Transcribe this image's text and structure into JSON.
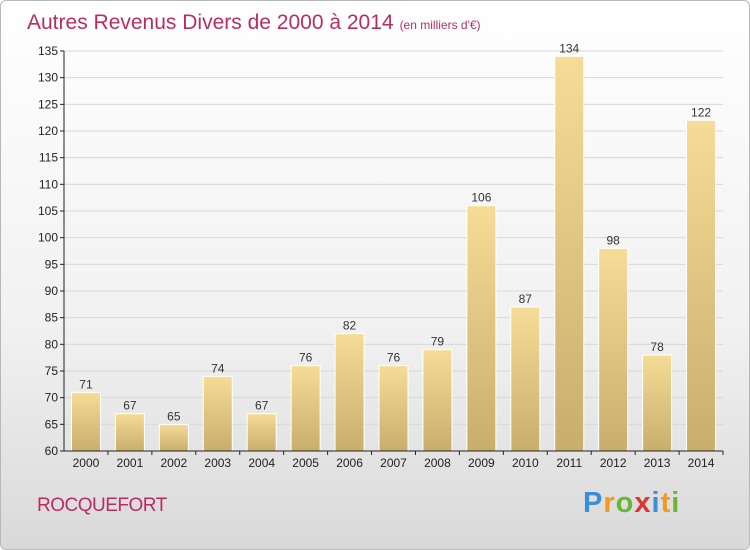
{
  "title": "Autres Revenus Divers de 2000 à 2014",
  "unit_note": "(en milliers d'€)",
  "commune": "ROCQUEFORT",
  "logo": {
    "letters": [
      "P",
      "r",
      "o",
      "x",
      "i",
      "t",
      "i"
    ],
    "colors": [
      "#3a8fd6",
      "#f29a1d",
      "#6ab534",
      "#e0342e",
      "#3a8fd6",
      "#f29a1d",
      "#6ab534"
    ]
  },
  "colors": {
    "bar_light": "#f6dc96",
    "bar_dark": "#c9ad6d",
    "title": "#bb2c63",
    "axis": "#222222",
    "grid": "#d8d8d8"
  },
  "chart_data": {
    "type": "bar",
    "categories": [
      "2000",
      "2001",
      "2002",
      "2003",
      "2004",
      "2005",
      "2006",
      "2007",
      "2008",
      "2009",
      "2010",
      "2011",
      "2012",
      "2013",
      "2014"
    ],
    "values": [
      71,
      67,
      65,
      74,
      67,
      76,
      82,
      76,
      79,
      106,
      87,
      134,
      98,
      78,
      122
    ],
    "ylim": [
      60,
      135
    ],
    "yticks": [
      60,
      65,
      70,
      75,
      80,
      85,
      90,
      95,
      100,
      105,
      110,
      115,
      120,
      125,
      130,
      135
    ],
    "grid": true,
    "data_labels": true
  }
}
